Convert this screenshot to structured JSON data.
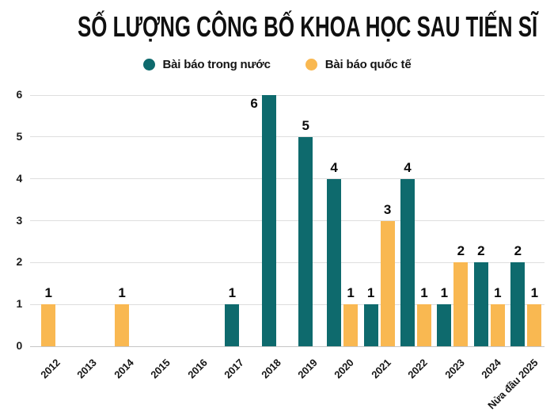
{
  "title": "SỐ LƯỢNG CÔNG BỐ KHOA HỌC SAU TIẾN SĨ",
  "legend": [
    {
      "label": "Bài báo trong nước",
      "color": "#0e6a6d",
      "icon": "circle-swatch-icon"
    },
    {
      "label": "Bài báo quốc tế",
      "color": "#f9b851",
      "icon": "circle-swatch-icon"
    }
  ],
  "colors": {
    "domestic_series": "#0e6a6d",
    "international_series": "#f9b851",
    "gridline": "#dedede",
    "baseline": "#c6c6c6",
    "text": "#111111",
    "background": "#ffffff"
  },
  "chart_data": {
    "type": "bar",
    "title": "SỐ LƯỢNG CÔNG BỐ KHOA HỌC SAU TIẾN SĨ",
    "categories": [
      "2012",
      "2013",
      "2014",
      "2015",
      "2016",
      "2017",
      "2018",
      "2019",
      "2020",
      "2021",
      "2022",
      "2023",
      "2024",
      "Nửa đầu 2025"
    ],
    "series": [
      {
        "name": "Bài báo trong nước",
        "color": "#0e6a6d",
        "values": [
          0,
          0,
          0,
          0,
          0,
          1,
          6,
          5,
          4,
          1,
          4,
          1,
          2,
          2
        ]
      },
      {
        "name": "Bài báo quốc tế",
        "color": "#f9b851",
        "values": [
          1,
          0,
          1,
          0,
          0,
          0,
          0,
          0,
          1,
          3,
          1,
          2,
          1,
          1
        ]
      }
    ],
    "xlabel": "",
    "ylabel": "",
    "ylim": [
      0,
      6
    ],
    "yticks": [
      0,
      1,
      2,
      3,
      4,
      5,
      6
    ],
    "grid": true,
    "bar_labels": true,
    "legend_position": "top",
    "x_tick_rotation": -45
  }
}
